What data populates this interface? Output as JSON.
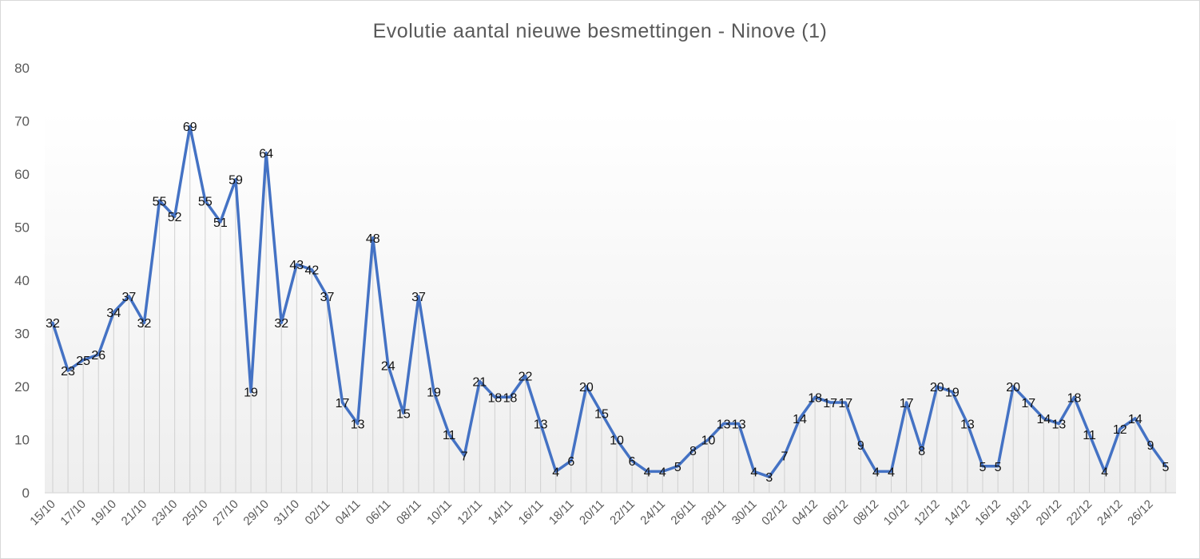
{
  "chart_data": {
    "type": "line",
    "title": "Evolutie aantal nieuwe besmettingen - Ninove (1)",
    "xlabel": "",
    "ylabel": "",
    "ylim": [
      0,
      80
    ],
    "yticks": [
      0,
      10,
      20,
      30,
      40,
      50,
      60,
      70,
      80
    ],
    "grid": false,
    "legend": "none",
    "line_color": "#4472c4",
    "dates": [
      "15/10",
      "16/10",
      "17/10",
      "18/10",
      "19/10",
      "20/10",
      "21/10",
      "22/10",
      "23/10",
      "24/10",
      "25/10",
      "26/10",
      "27/10",
      "28/10",
      "29/10",
      "30/10",
      "31/10",
      "01/11",
      "02/11",
      "03/11",
      "04/11",
      "05/11",
      "06/11",
      "07/11",
      "08/11",
      "09/11",
      "10/11",
      "11/11",
      "12/11",
      "13/11",
      "14/11",
      "15/11",
      "16/11",
      "17/11",
      "18/11",
      "19/11",
      "20/11",
      "21/11",
      "22/11",
      "23/11",
      "24/11",
      "25/11",
      "26/11",
      "27/11",
      "28/11",
      "29/11",
      "30/11",
      "01/12",
      "02/12",
      "03/12",
      "04/12",
      "05/12",
      "06/12",
      "07/12",
      "08/12",
      "09/12",
      "10/12",
      "11/12",
      "12/12",
      "13/12",
      "14/12",
      "15/12",
      "16/12",
      "17/12",
      "18/12",
      "19/12",
      "20/12",
      "21/12",
      "22/12",
      "23/12",
      "24/12",
      "25/12",
      "26/12",
      "27/12"
    ],
    "tick_labels": [
      "15/10",
      "17/10",
      "19/10",
      "21/10",
      "23/10",
      "25/10",
      "27/10",
      "29/10",
      "31/10",
      "02/11",
      "04/11",
      "06/11",
      "08/11",
      "10/11",
      "12/11",
      "14/11",
      "16/11",
      "18/11",
      "20/11",
      "22/11",
      "24/11",
      "26/11",
      "28/11",
      "30/11",
      "02/12",
      "04/12",
      "06/12",
      "08/12",
      "10/12",
      "12/12",
      "14/12",
      "16/12",
      "18/12",
      "20/12",
      "22/12",
      "24/12",
      "26/12"
    ],
    "series": [
      {
        "values": [
          32,
          23,
          25,
          26,
          34,
          37,
          32,
          55,
          52,
          69,
          55,
          51,
          59,
          19,
          64,
          32,
          43,
          42,
          37,
          17,
          13,
          48,
          24,
          15,
          37,
          19,
          11,
          7,
          21,
          18,
          18,
          22,
          13,
          4,
          6,
          20,
          15,
          10,
          6,
          4,
          4,
          5,
          8,
          10,
          13,
          13,
          4,
          3,
          7,
          14,
          18,
          17,
          17,
          9,
          4,
          4,
          17,
          8,
          20,
          19,
          13,
          5,
          5,
          20,
          17,
          14,
          13,
          18,
          11,
          4,
          12,
          14,
          9,
          5
        ]
      }
    ]
  }
}
